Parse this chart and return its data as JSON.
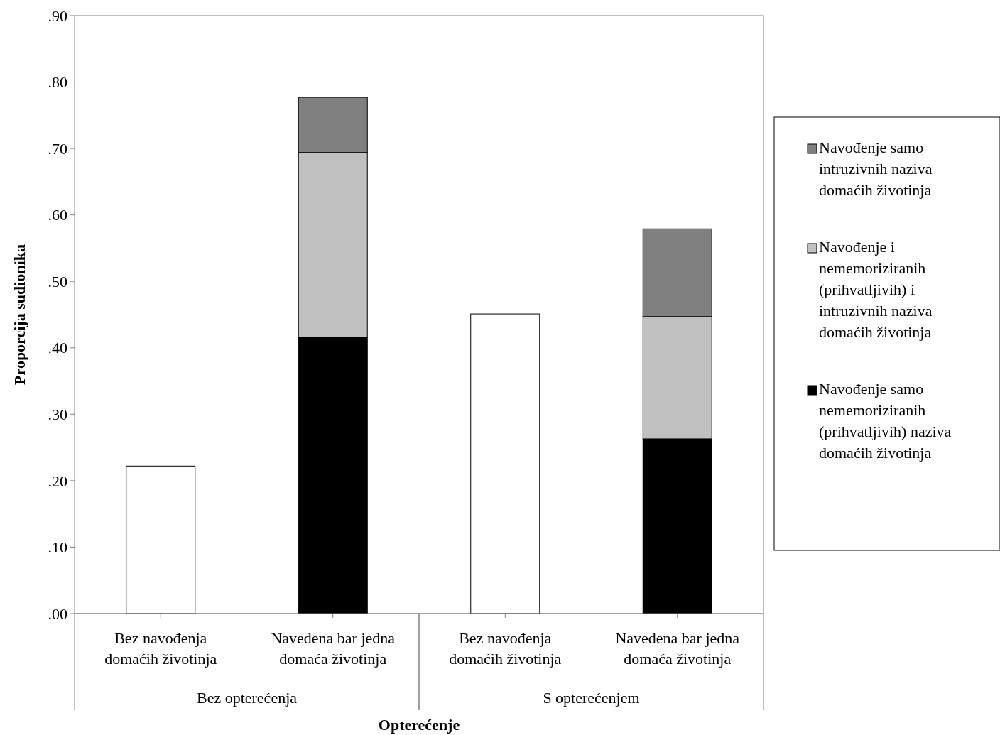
{
  "chart_data": {
    "type": "bar",
    "stacked": true,
    "xlabel": "Opterećenje",
    "ylabel": "Proporcija sudionika",
    "categories": [
      "Bez navođenja domaćih životinja",
      "Navedena bar jedna domaća životinja",
      "Bez navođenja domaćih životinja",
      "Navedena bar jedna domaća životinja"
    ],
    "annotations": [
      "Bez opterećenja",
      "S opterećenjem"
    ],
    "series": [
      {
        "color": "#ffffff",
        "values": [
          0.222,
          null,
          0.451,
          null
        ]
      },
      {
        "name": "Navođenje samo nememoriziranih (prihvatljivih) naziva domaćih životinja",
        "color": "#000000",
        "values": [
          null,
          0.416,
          null,
          0.263
        ]
      },
      {
        "name": "Navođenje i nememoriziranih (prihvatljivih) i intruzivnih naziva domaćih životinja",
        "color": "#c0c0c0",
        "values": [
          null,
          0.278,
          null,
          0.184
        ]
      },
      {
        "name": "Navođenje samo intruzivnih naziva domaćih životinja",
        "color": "#808080",
        "values": [
          null,
          0.083,
          null,
          0.132
        ]
      }
    ],
    "ylim": [
      0,
      0.9
    ],
    "yticks": [
      {
        "value": 0,
        "label": ".00"
      },
      {
        "value": 0.1,
        "label": ".10"
      },
      {
        "value": 0.2,
        "label": ".20"
      },
      {
        "value": 0.3,
        "label": ".30"
      },
      {
        "value": 0.4,
        "label": ".40"
      },
      {
        "value": 0.5,
        "label": ".50"
      },
      {
        "value": 0.6,
        "label": ".60"
      },
      {
        "value": 0.7,
        "label": ".70"
      },
      {
        "value": 0.8,
        "label": ".80"
      },
      {
        "value": 0.9,
        "label": ".90"
      }
    ],
    "grid": false,
    "legend": "right"
  }
}
